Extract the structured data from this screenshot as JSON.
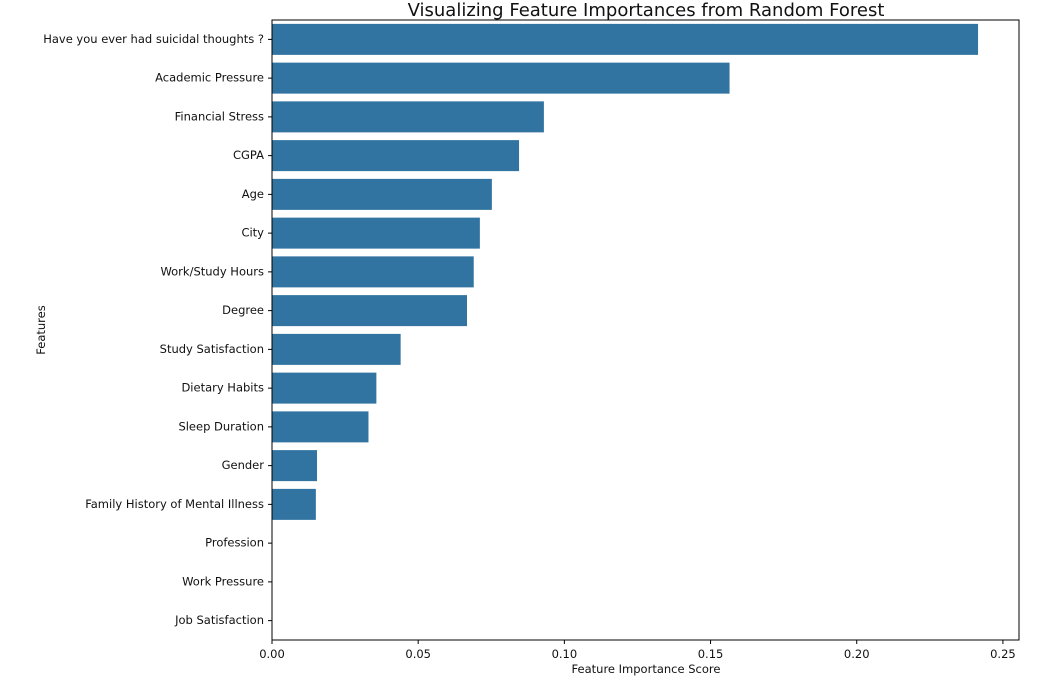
{
  "chart_data": {
    "type": "bar",
    "orientation": "horizontal",
    "title": "Visualizing Feature Importances from Random Forest",
    "xlabel": "Feature Importance Score",
    "ylabel": "Features",
    "xlim": [
      0,
      0.2555
    ],
    "xticks": [
      0.0,
      0.05,
      0.1,
      0.15,
      0.2,
      0.25
    ],
    "xtick_labels": [
      "0.00",
      "0.05",
      "0.10",
      "0.15",
      "0.20",
      "0.25"
    ],
    "grid": false,
    "bar_color": "#3274a1",
    "categories": [
      "Have you ever had suicidal thoughts ?",
      "Academic Pressure",
      "Financial Stress",
      "CGPA",
      "Age",
      "City",
      "Work/Study Hours",
      "Degree",
      "Study Satisfaction",
      "Dietary Habits",
      "Sleep Duration",
      "Gender",
      "Family History of Mental Illness",
      "Profession",
      "Work Pressure",
      "Job Satisfaction"
    ],
    "values": [
      0.2415,
      0.1565,
      0.093,
      0.0845,
      0.0752,
      0.0711,
      0.069,
      0.0667,
      0.044,
      0.0357,
      0.033,
      0.0154,
      0.015,
      0.0,
      0.0,
      0.0
    ]
  }
}
